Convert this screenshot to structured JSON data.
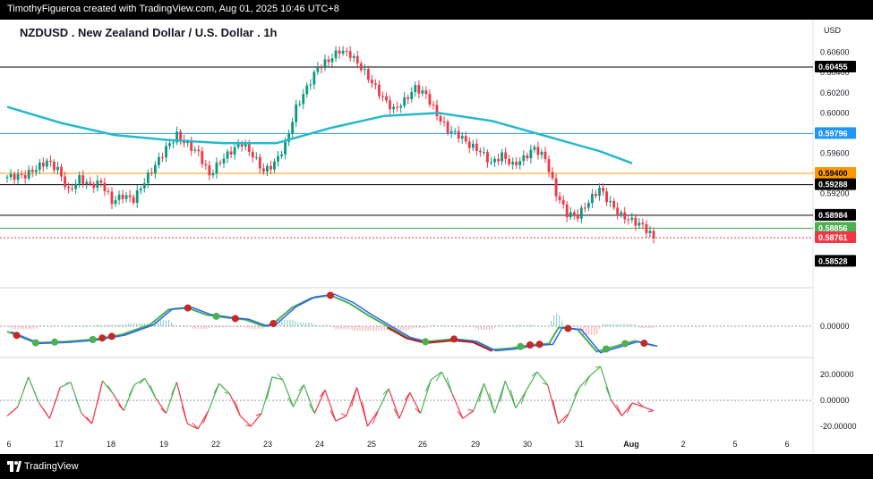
{
  "header": {
    "attribution": "TimothyFigueroa created with TradingView.com, Aug 01, 2025 10:46 UTC+8"
  },
  "footer": {
    "brand": "TradingView"
  },
  "chart_data": {
    "type": "candlestick",
    "title": "NZDUSD . New Zealand Dollar / U.S. Dollar . 1h",
    "currency_label": "USD",
    "price_axis_ticks": [
      "0.60600",
      "0.60400",
      "0.60200",
      "0.60000",
      "0.59600",
      "0.59200",
      "0.58500"
    ],
    "price_ylim": [
      0.5846,
      0.6073
    ],
    "time_ticks": [
      "6",
      "17",
      "18",
      "19",
      "22",
      "23",
      "24",
      "25",
      "26",
      "29",
      "30",
      "31",
      "Aug",
      "2",
      "5",
      "6"
    ],
    "price_path": [
      [
        0,
        0.5936
      ],
      [
        2,
        0.5938
      ],
      [
        4,
        0.5952
      ],
      [
        5,
        0.5944
      ],
      [
        6,
        0.5922
      ],
      [
        7,
        0.5935
      ],
      [
        8,
        0.5928
      ],
      [
        9,
        0.5931
      ],
      [
        10,
        0.5912
      ],
      [
        11,
        0.5918
      ],
      [
        12,
        0.5914
      ],
      [
        13,
        0.5932
      ],
      [
        14,
        0.5948
      ],
      [
        15,
        0.5965
      ],
      [
        16,
        0.5978
      ],
      [
        17,
        0.5968
      ],
      [
        18,
        0.596
      ],
      [
        19,
        0.5938
      ],
      [
        20,
        0.5952
      ],
      [
        21,
        0.5962
      ],
      [
        22,
        0.597
      ],
      [
        23,
        0.5958
      ],
      [
        24,
        0.5942
      ],
      [
        25,
        0.595
      ],
      [
        26,
        0.5968
      ],
      [
        27,
        0.6005
      ],
      [
        28,
        0.6025
      ],
      [
        29,
        0.6045
      ],
      [
        30,
        0.6052
      ],
      [
        31,
        0.6062
      ],
      [
        32,
        0.6058
      ],
      [
        33,
        0.6045
      ],
      [
        34,
        0.603
      ],
      [
        35,
        0.6015
      ],
      [
        36,
        0.6003
      ],
      [
        37,
        0.6012
      ],
      [
        38,
        0.6025
      ],
      [
        39,
        0.6018
      ],
      [
        40,
        0.5998
      ],
      [
        41,
        0.5983
      ],
      [
        42,
        0.5978
      ],
      [
        43,
        0.5968
      ],
      [
        44,
        0.5962
      ],
      [
        45,
        0.595
      ],
      [
        46,
        0.5958
      ],
      [
        47,
        0.5948
      ],
      [
        48,
        0.5955
      ],
      [
        49,
        0.5965
      ],
      [
        50,
        0.5955
      ],
      [
        51,
        0.592
      ],
      [
        52,
        0.59
      ],
      [
        53,
        0.5898
      ],
      [
        54,
        0.5912
      ],
      [
        55,
        0.5925
      ],
      [
        56,
        0.591
      ],
      [
        57,
        0.5898
      ],
      [
        58,
        0.5893
      ],
      [
        59,
        0.5888
      ],
      [
        60,
        0.5876
      ]
    ],
    "price_path_x_range": [
      0,
      60
    ],
    "moving_average": {
      "color": "#26b9c9",
      "path": [
        [
          0,
          0.6006
        ],
        [
          5,
          0.599
        ],
        [
          10,
          0.5978
        ],
        [
          15,
          0.5973
        ],
        [
          20,
          0.597
        ],
        [
          25,
          0.597
        ],
        [
          30,
          0.5985
        ],
        [
          35,
          0.5997
        ],
        [
          40,
          0.6
        ],
        [
          45,
          0.5992
        ],
        [
          50,
          0.5977
        ],
        [
          55,
          0.5962
        ],
        [
          58,
          0.595
        ]
      ]
    },
    "horizontal_levels": [
      {
        "value": 0.60455,
        "label": "0.60455",
        "line_color": "#000000",
        "tag_bg": "#000000",
        "tag_fg": "#ffffff"
      },
      {
        "value": 0.59796,
        "label": "0.59796",
        "line_color": "#2196f3",
        "tag_bg": "#2196f3",
        "tag_fg": "#ffffff"
      },
      {
        "value": 0.594,
        "label": "0.59400",
        "line_color": "#ff9800",
        "tag_bg": "#ff9800",
        "tag_fg": "#000000"
      },
      {
        "value": 0.59288,
        "label": "0.59288",
        "line_color": "#000000",
        "tag_bg": "#000000",
        "tag_fg": "#ffffff"
      },
      {
        "value": 0.58984,
        "label": "0.58984",
        "line_color": "#000000",
        "tag_bg": "#000000",
        "tag_fg": "#ffffff"
      },
      {
        "value": 0.58856,
        "label": "0.58856",
        "line_color": "#4caf50",
        "tag_bg": "#4caf50",
        "tag_fg": "#ffffff"
      },
      {
        "value": 0.58761,
        "label": "0.58761",
        "line_color": "#f23645",
        "tag_bg": "#f23645",
        "tag_fg": "#ffffff",
        "dotted": true
      },
      {
        "value": 0.58528,
        "label": "0.58528",
        "line_color": null,
        "tag_bg": "#000000",
        "tag_fg": "#ffffff"
      }
    ],
    "macd": {
      "zero_label": "0.00000",
      "ylim": [
        -1,
        1
      ],
      "fast_color": "#2962ff",
      "slow_color": "#4caf50",
      "signal_line": [
        [
          0,
          -0.2
        ],
        [
          3,
          -0.62
        ],
        [
          6,
          -0.58
        ],
        [
          9,
          -0.5
        ],
        [
          12,
          -0.32
        ],
        [
          15,
          0.05
        ],
        [
          17,
          0.62
        ],
        [
          19,
          0.68
        ],
        [
          21,
          0.42
        ],
        [
          23,
          0.32
        ],
        [
          25,
          0.25
        ],
        [
          27,
          0.0
        ],
        [
          28,
          0.1
        ],
        [
          30,
          0.7
        ],
        [
          32,
          1.05
        ],
        [
          34,
          1.15
        ],
        [
          36,
          0.85
        ],
        [
          38,
          0.4
        ],
        [
          40,
          0.0
        ],
        [
          42,
          -0.4
        ],
        [
          44,
          -0.58
        ],
        [
          47,
          -0.48
        ],
        [
          49,
          -0.55
        ],
        [
          51,
          -0.88
        ],
        [
          53,
          -0.82
        ],
        [
          55,
          -0.7
        ],
        [
          57,
          -0.65
        ],
        [
          58,
          -0.05
        ],
        [
          60,
          -0.12
        ],
        [
          62,
          -0.95
        ],
        [
          64,
          -0.75
        ],
        [
          66,
          -0.55
        ],
        [
          68,
          -0.72
        ]
      ],
      "signal_line_x_range": [
        0,
        68
      ],
      "crosses": [
        {
          "x": 1,
          "color": "#c62828"
        },
        {
          "x": 3,
          "color": "#4caf50"
        },
        {
          "x": 5,
          "color": "#4caf50"
        },
        {
          "x": 9,
          "color": "#4caf50"
        },
        {
          "x": 10,
          "color": "#c62828"
        },
        {
          "x": 11,
          "color": "#c62828"
        },
        {
          "x": 19,
          "color": "#c62828"
        },
        {
          "x": 22,
          "color": "#4caf50"
        },
        {
          "x": 24,
          "color": "#c62828"
        },
        {
          "x": 28,
          "color": "#c62828"
        },
        {
          "x": 34,
          "color": "#c62828"
        },
        {
          "x": 44,
          "color": "#4caf50"
        },
        {
          "x": 47,
          "color": "#c62828"
        },
        {
          "x": 54,
          "color": "#4caf50"
        },
        {
          "x": 55,
          "color": "#c62828"
        },
        {
          "x": 56,
          "color": "#c62828"
        },
        {
          "x": 59,
          "color": "#c62828"
        },
        {
          "x": 63,
          "color": "#4caf50"
        },
        {
          "x": 65,
          "color": "#4caf50"
        },
        {
          "x": 67,
          "color": "#c62828"
        }
      ]
    },
    "oscillator": {
      "ticks": [
        "20.00000",
        "0.00000",
        "-20.00000"
      ],
      "ylim": [
        -30,
        30
      ],
      "up_color": "#4caf50",
      "down_color": "#f23645",
      "path": [
        [
          0,
          -12
        ],
        [
          1,
          -5
        ],
        [
          2,
          18
        ],
        [
          3,
          -2
        ],
        [
          4,
          -14
        ],
        [
          5,
          10
        ],
        [
          6,
          14
        ],
        [
          7,
          -10
        ],
        [
          8,
          -18
        ],
        [
          9,
          15
        ],
        [
          10,
          5
        ],
        [
          11,
          -8
        ],
        [
          12,
          12
        ],
        [
          13,
          17
        ],
        [
          14,
          2
        ],
        [
          15,
          -10
        ],
        [
          16,
          14
        ],
        [
          17,
          -18
        ],
        [
          18,
          -22
        ],
        [
          19,
          -8
        ],
        [
          20,
          13
        ],
        [
          21,
          5
        ],
        [
          22,
          -12
        ],
        [
          23,
          -20
        ],
        [
          24,
          -10
        ],
        [
          25,
          18
        ],
        [
          26,
          16
        ],
        [
          27,
          -5
        ],
        [
          28,
          12
        ],
        [
          29,
          -10
        ],
        [
          30,
          8
        ],
        [
          31,
          -16
        ],
        [
          32,
          -12
        ],
        [
          33,
          10
        ],
        [
          34,
          -20
        ],
        [
          35,
          -8
        ],
        [
          36,
          9
        ],
        [
          37,
          -14
        ],
        [
          38,
          6
        ],
        [
          39,
          -10
        ],
        [
          40,
          16
        ],
        [
          41,
          22
        ],
        [
          42,
          5
        ],
        [
          43,
          -14
        ],
        [
          44,
          -8
        ],
        [
          45,
          13
        ],
        [
          46,
          -10
        ],
        [
          47,
          15
        ],
        [
          48,
          -6
        ],
        [
          49,
          8
        ],
        [
          50,
          22
        ],
        [
          51,
          12
        ],
        [
          52,
          -18
        ],
        [
          53,
          -10
        ],
        [
          54,
          10
        ],
        [
          55,
          19
        ],
        [
          56,
          26
        ],
        [
          57,
          0
        ],
        [
          58,
          -12
        ],
        [
          59,
          -2
        ],
        [
          60,
          -5
        ],
        [
          61,
          -8
        ]
      ],
      "path_x_range": [
        0,
        61
      ]
    }
  }
}
